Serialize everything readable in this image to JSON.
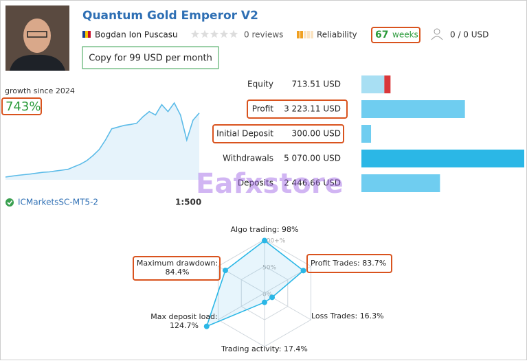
{
  "header": {
    "title": "Quantum Gold Emperor V2",
    "author": "Bogdan Ion Puscasu",
    "reviews": "0 reviews",
    "reliability": "Reliability",
    "weeks_value": "67",
    "weeks_label": "weeks",
    "subscribers": "0 / 0 USD",
    "copy_button": "Copy for 99 USD per month"
  },
  "growth": {
    "label": "growth since 2024",
    "value": "743%",
    "broker": "ICMarketsSC-MT5-2",
    "leverage": "1:500",
    "curve": [
      0,
      10,
      20,
      28,
      35,
      45,
      55,
      60,
      70,
      80,
      90,
      120,
      150,
      190,
      250,
      320,
      430,
      560,
      580,
      600,
      610,
      625,
      700,
      760,
      720,
      840,
      760,
      860,
      720,
      430,
      660,
      743
    ]
  },
  "stats": [
    {
      "label": "Equity",
      "amount": 713.51,
      "amount_label": "713.51 USD"
    },
    {
      "label": "Profit",
      "amount": 3223.11,
      "amount_label": "3 223.11 USD"
    },
    {
      "label": "Initial Deposit",
      "amount": 300.0,
      "amount_label": "300.00 USD"
    },
    {
      "label": "Withdrawals",
      "amount": 5070.0,
      "amount_label": "5 070.00 USD"
    },
    {
      "label": "Deposits",
      "amount": 2446.66,
      "amount_label": "2 446.66 USD"
    }
  ],
  "radar": {
    "ticks": [
      {
        "value": 100,
        "label": "100+%"
      },
      {
        "value": 50,
        "label": "50%"
      },
      {
        "value": 0,
        "label": "0%"
      }
    ],
    "axes": [
      {
        "name": "Algo trading:",
        "value": 98,
        "value_label": "98%"
      },
      {
        "name": "Profit Trades:",
        "value": 83.7,
        "value_label": "83.7%"
      },
      {
        "name": "Loss Trades:",
        "value": 16.3,
        "value_label": "16.3%"
      },
      {
        "name": "Trading activity:",
        "value": 17.4,
        "value_label": "17.4%"
      },
      {
        "name": "Max deposit load:",
        "value": 124.7,
        "value_label": "124.7%"
      },
      {
        "name": "Maximum drawdown:",
        "value": 84.4,
        "value_label": "84.4%"
      }
    ]
  },
  "watermark": "Eafxstore"
}
